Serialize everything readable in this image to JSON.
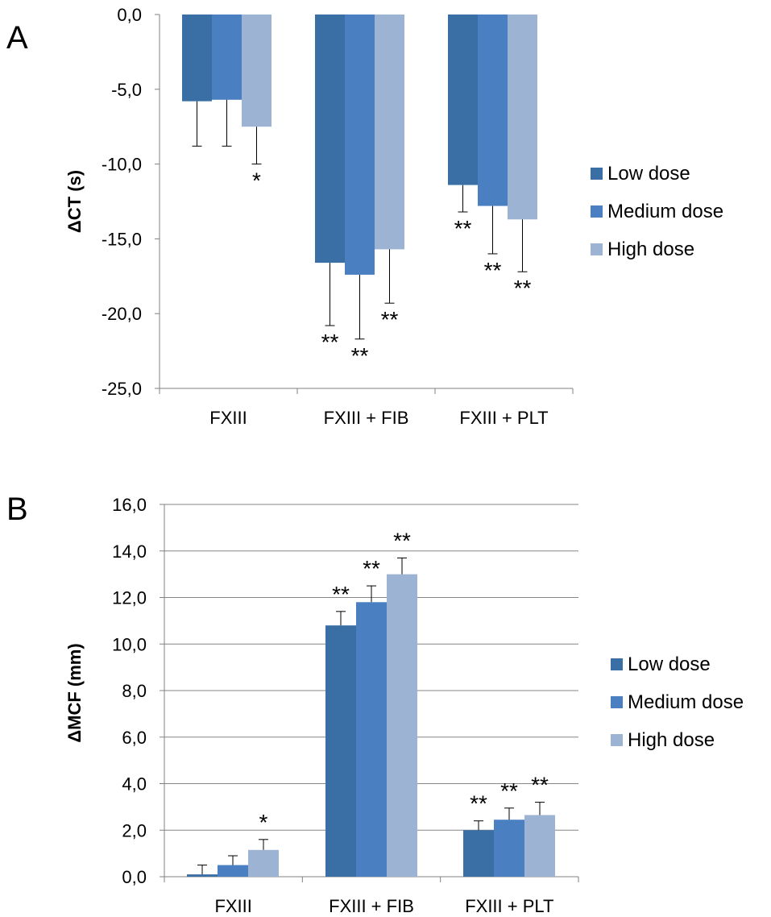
{
  "colors": {
    "low": "#3a6fa5",
    "medium": "#4a80c1",
    "high": "#9db3d4",
    "axis": "#808080",
    "grid": "#868686"
  },
  "legend": [
    "Low dose",
    "Medium dose",
    "High dose"
  ],
  "chart_data": [
    {
      "type": "bar",
      "panel_label": "A",
      "ylabel": "ΔCT (s)",
      "xlabel": "",
      "ylim": [
        -25,
        0
      ],
      "yticks": [
        "0,0",
        "-5,0",
        "-10,0",
        "-15,0",
        "-20,0",
        "-25,0"
      ],
      "ytick_values": [
        0,
        -5,
        -10,
        -15,
        -20,
        -25
      ],
      "grid": false,
      "legend_position": "right",
      "categories": [
        "FXIII",
        "FXIII + FIB",
        "FXIII + PLT"
      ],
      "series": [
        {
          "name": "Low dose",
          "values": [
            -5.8,
            -16.6,
            -11.4
          ],
          "errors": [
            3.0,
            4.2,
            1.8
          ],
          "sig": [
            "",
            "**",
            "**"
          ]
        },
        {
          "name": "Medium dose",
          "values": [
            -5.7,
            -17.4,
            -12.8
          ],
          "errors": [
            3.1,
            4.3,
            3.2
          ],
          "sig": [
            "",
            "**",
            "**"
          ]
        },
        {
          "name": "High dose",
          "values": [
            -7.5,
            -15.7,
            -13.7
          ],
          "errors": [
            2.5,
            3.6,
            3.5
          ],
          "sig": [
            "*",
            "**",
            "**"
          ]
        }
      ]
    },
    {
      "type": "bar",
      "panel_label": "B",
      "ylabel": "ΔMCF (mm)",
      "xlabel": "",
      "ylim": [
        0,
        16
      ],
      "yticks": [
        "0,0",
        "2,0",
        "4,0",
        "6,0",
        "8,0",
        "10,0",
        "12,0",
        "14,0",
        "16,0"
      ],
      "ytick_values": [
        0,
        2,
        4,
        6,
        8,
        10,
        12,
        14,
        16
      ],
      "grid": true,
      "legend_position": "right",
      "categories": [
        "FXIII",
        "FXIII + FIB",
        "FXIII + PLT"
      ],
      "series": [
        {
          "name": "Low dose",
          "values": [
            0.1,
            10.8,
            2.0
          ],
          "errors": [
            0.4,
            0.6,
            0.4
          ],
          "sig": [
            "",
            "**",
            "**"
          ]
        },
        {
          "name": "Medium dose",
          "values": [
            0.5,
            11.8,
            2.45
          ],
          "errors": [
            0.4,
            0.7,
            0.5
          ],
          "sig": [
            "",
            "**",
            "**"
          ]
        },
        {
          "name": "High dose",
          "values": [
            1.15,
            13.0,
            2.65
          ],
          "errors": [
            0.45,
            0.7,
            0.55
          ],
          "sig": [
            "*",
            "**",
            "**"
          ]
        }
      ]
    }
  ]
}
